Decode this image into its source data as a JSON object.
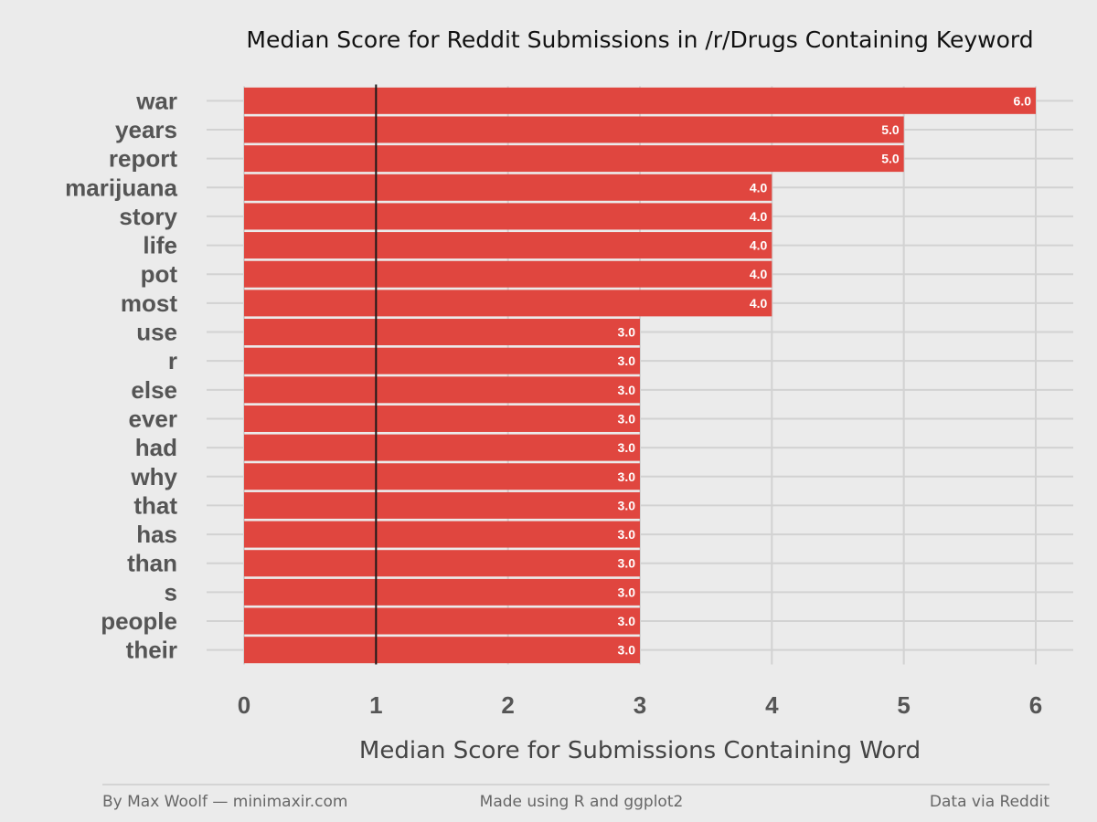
{
  "chart_data": {
    "type": "bar",
    "orientation": "horizontal",
    "title": "Median Score for Reddit Submissions in /r/Drugs Containing Keyword",
    "xlabel": "Median Score for Submissions Containing Word",
    "ylabel": "",
    "categories": [
      "war",
      "years",
      "report",
      "marijuana",
      "story",
      "life",
      "pot",
      "most",
      "use",
      "r",
      "else",
      "ever",
      "had",
      "why",
      "that",
      "has",
      "than",
      "s",
      "people",
      "their"
    ],
    "values": [
      6.0,
      5.0,
      5.0,
      4.0,
      4.0,
      4.0,
      4.0,
      4.0,
      3.0,
      3.0,
      3.0,
      3.0,
      3.0,
      3.0,
      3.0,
      3.0,
      3.0,
      3.0,
      3.0,
      3.0
    ],
    "value_labels": [
      "6.0",
      "5.0",
      "5.0",
      "4.0",
      "4.0",
      "4.0",
      "4.0",
      "4.0",
      "3.0",
      "3.0",
      "3.0",
      "3.0",
      "3.0",
      "3.0",
      "3.0",
      "3.0",
      "3.0",
      "3.0",
      "3.0",
      "3.0"
    ],
    "xlim": [
      0,
      6
    ],
    "x_ticks": [
      "0",
      "1",
      "2",
      "3",
      "4",
      "5",
      "6"
    ],
    "reference_line_x": 1,
    "grid": true,
    "colors": {
      "bar": "#e0463f",
      "background": "#ebebeb",
      "grid": "#d2d2d2",
      "reference_line": "#1a1a1a"
    }
  },
  "footer": {
    "left": "By Max Woolf — minimaxir.com",
    "center": "Made using R and ggplot2",
    "right": "Data via Reddit"
  }
}
